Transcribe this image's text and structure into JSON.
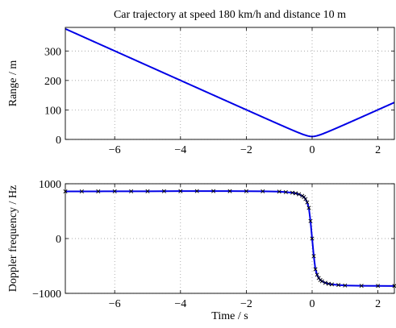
{
  "chart_data": [
    {
      "type": "line",
      "title": "Car trajectory at speed 180 km/h and distance 10 m",
      "xlabel": "",
      "ylabel": "Range / m",
      "xlim": [
        -7.5,
        2.5
      ],
      "ylim": [
        0,
        380
      ],
      "xticks": [
        -6,
        -4,
        -2,
        0,
        2
      ],
      "yticks": [
        0,
        100,
        200,
        300
      ],
      "grid": true,
      "series": [
        {
          "color": "#0000e6",
          "model": "range",
          "speed_kmh": 180,
          "distance_m": 10
        }
      ]
    },
    {
      "type": "line",
      "title": "",
      "xlabel": "Time / s",
      "ylabel": "Doppler frequency / Hz",
      "xlim": [
        -7.5,
        2.5
      ],
      "ylim": [
        -1000,
        1000
      ],
      "xticks": [
        -6,
        -4,
        -2,
        0,
        2
      ],
      "yticks": [
        -1000,
        0,
        1000
      ],
      "grid": true,
      "series": [
        {
          "color": "#0000e6",
          "marker": "x",
          "marker_color": "#000000",
          "x": [
            -7.5,
            -7.0,
            -6.5,
            -6.0,
            -5.5,
            -5.0,
            -4.5,
            -4.0,
            -3.5,
            -3.0,
            -2.5,
            -2.0,
            -1.5,
            -1.0,
            -0.8,
            -0.6,
            -0.5,
            -0.4,
            -0.3,
            -0.25,
            -0.2,
            -0.15,
            -0.1,
            -0.05,
            0.0,
            0.05,
            0.1,
            0.15,
            0.2,
            0.25,
            0.3,
            0.4,
            0.5,
            0.6,
            0.8,
            1.0,
            1.5,
            2.0,
            2.5
          ],
          "y": [
            860,
            860,
            861,
            862,
            862,
            863,
            864,
            865,
            866,
            866,
            865,
            864,
            862,
            856,
            848,
            836,
            825,
            808,
            780,
            757,
            720,
            660,
            560,
            320,
            0,
            -320,
            -560,
            -660,
            -720,
            -757,
            -780,
            -808,
            -825,
            -836,
            -848,
            -856,
            -862,
            -864,
            -865
          ]
        }
      ]
    }
  ]
}
